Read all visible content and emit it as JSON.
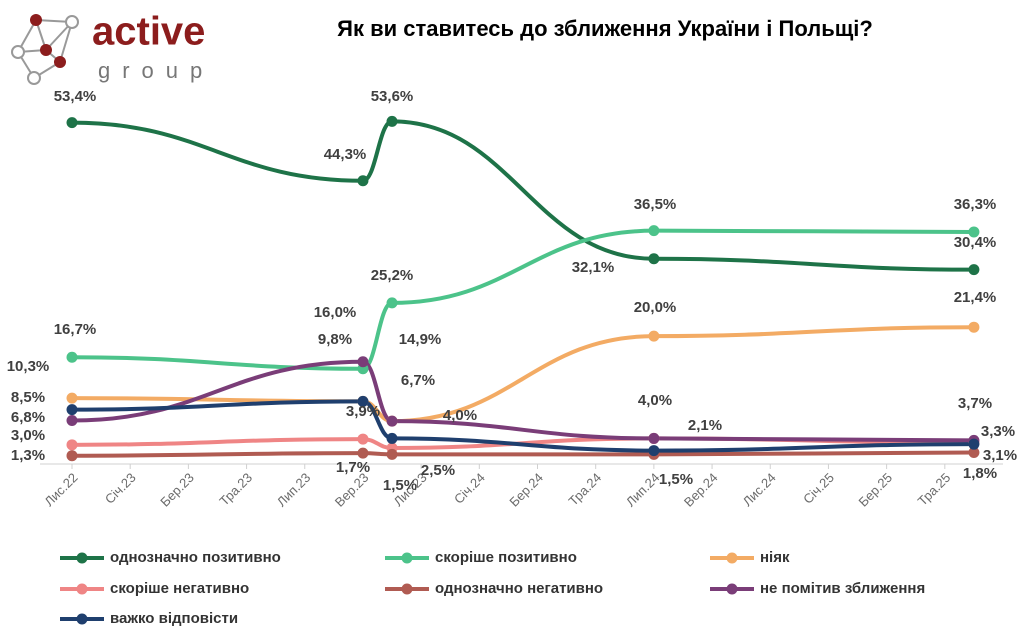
{
  "logo": {
    "name": "active",
    "sub": "group"
  },
  "chart_data": {
    "type": "line",
    "title": "Як ви ставитесь до зближення України і Польщі?",
    "x": [
      0,
      5,
      5.5,
      10,
      15.5
    ],
    "xlim": [
      -0.55,
      16
    ],
    "xticks": [
      {
        "value": 0,
        "label": "Лис.22"
      },
      {
        "value": 1,
        "label": "Січ.23"
      },
      {
        "value": 2,
        "label": "Бер.23"
      },
      {
        "value": 3,
        "label": "Тра.23"
      },
      {
        "value": 4,
        "label": "Лип.23"
      },
      {
        "value": 5,
        "label": "Вер.23"
      },
      {
        "value": 6,
        "label": "Лис.23"
      },
      {
        "value": 7,
        "label": "Січ.24"
      },
      {
        "value": 8,
        "label": "Бер.24"
      },
      {
        "value": 9,
        "label": "Тра.24"
      },
      {
        "value": 10,
        "label": "Лип.24"
      },
      {
        "value": 11,
        "label": "Вер.24"
      },
      {
        "value": 12,
        "label": "Лис.24"
      },
      {
        "value": 13,
        "label": "Січ.25"
      },
      {
        "value": 14,
        "label": "Бер.25"
      },
      {
        "value": 15,
        "label": "Тра.25"
      }
    ],
    "ylim": [
      0,
      56
    ],
    "grid": false,
    "legend": "bottom",
    "series": [
      {
        "name": "однозначно позитивно",
        "color": "#1e7348",
        "values": [
          53.4,
          44.3,
          53.6,
          32.1,
          30.4
        ],
        "value_labels": [
          "53,4%",
          "44,3%",
          "53,6%",
          "32,1%",
          "30,4%"
        ]
      },
      {
        "name": "скоріше позитивно",
        "color": "#4cc38a",
        "values": [
          16.7,
          14.9,
          25.2,
          36.5,
          36.3
        ],
        "value_labels": [
          "16,7%",
          "14,9%",
          "25,2%",
          "36,5%",
          "36,3%"
        ]
      },
      {
        "name": "ніяк",
        "color": "#f3ab64",
        "values": [
          10.3,
          9.8,
          6.7,
          20.0,
          21.4
        ],
        "value_labels": [
          "10,3%",
          null,
          null,
          "20,0%",
          "21,4%"
        ]
      },
      {
        "name": "скоріше негативно",
        "color": "#ef8585",
        "values": [
          3.0,
          3.9,
          2.5,
          4.0,
          3.3
        ],
        "value_labels": [
          "3,0%",
          "3,9%",
          "2,5%",
          null,
          "3,3%"
        ]
      },
      {
        "name": "однозначно негативно",
        "color": "#b05b52",
        "values": [
          1.3,
          1.7,
          1.5,
          1.5,
          1.8
        ],
        "value_labels": [
          "1,3%",
          "1,7%",
          "1,5%",
          "1,5%",
          "1,8%"
        ]
      },
      {
        "name": "не помітив зближення",
        "color": "#7a3d78",
        "values": [
          6.8,
          16.0,
          6.7,
          4.0,
          3.7
        ],
        "value_labels": [
          "6,8%",
          "16,0%",
          "6,7%",
          "4,0%",
          "3,7%"
        ]
      },
      {
        "name": "важко відповісти",
        "color": "#1f3f6e",
        "values": [
          8.5,
          9.8,
          4.0,
          2.1,
          3.1
        ],
        "value_labels": [
          "8,5%",
          "9,8%",
          "4,0%",
          "2,1%",
          "3,1%"
        ]
      }
    ]
  }
}
